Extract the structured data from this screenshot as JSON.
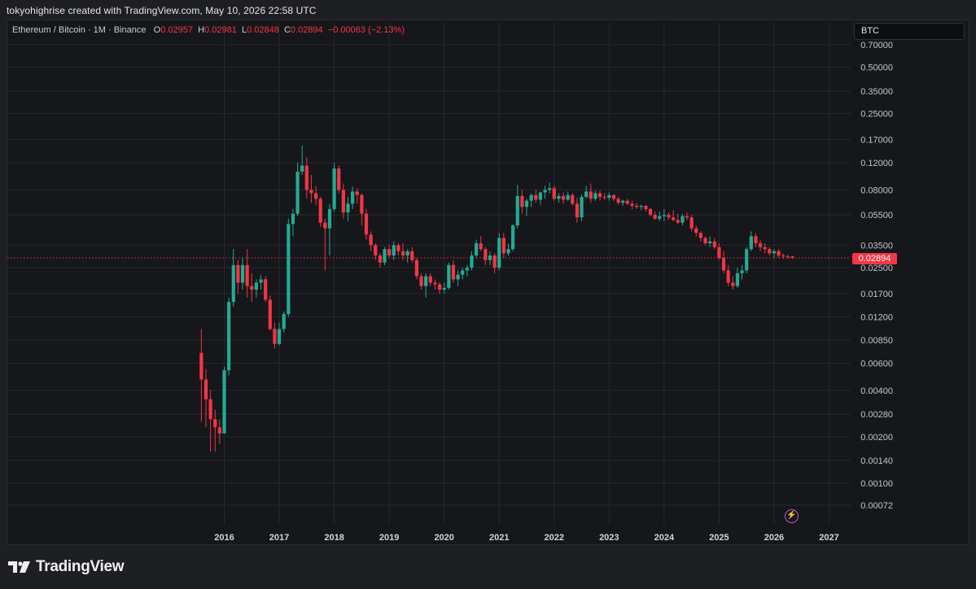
{
  "caption": "tokyohighrise created with TradingView.com, May 10, 2026 22:58 UTC",
  "legend": {
    "symbol": "Ethereum / Bitcoin · 1M · Binance",
    "open_label": "O",
    "open": "0.02957",
    "high_label": "H",
    "high": "0.02981",
    "low_label": "L",
    "low": "0.02848",
    "close_label": "C",
    "close": "0.02894",
    "change": "−0.00063 (−2.13%)"
  },
  "ticker_box": "BTC",
  "last_price_label": "0.02894",
  "brand": "TradingView",
  "colors": {
    "up": "#22ab94",
    "down": "#f23645",
    "background": "#16171b",
    "grid": "#26282e",
    "price_line": "#f23645"
  },
  "chart_data": {
    "type": "candlestick",
    "scale": "log",
    "y_ticks": [
      "0.70000",
      "0.50000",
      "0.35000",
      "0.25000",
      "0.17000",
      "0.12000",
      "0.08000",
      "0.05500",
      "0.03500",
      "0.02500",
      "0.01700",
      "0.01200",
      "0.00850",
      "0.00600",
      "0.00400",
      "0.00280",
      "0.00200",
      "0.00140",
      "0.00100",
      "0.00072"
    ],
    "x_ticks": [
      "2016",
      "2017",
      "2018",
      "2019",
      "2020",
      "2021",
      "2022",
      "2023",
      "2024",
      "2025",
      "2026",
      "2027"
    ],
    "grid": true,
    "last_price": 0.02894,
    "candles": [
      {
        "t": "2015-08",
        "o": 0.007,
        "h": 0.01,
        "l": 0.0025,
        "c": 0.0047
      },
      {
        "t": "2015-09",
        "o": 0.0047,
        "h": 0.0055,
        "l": 0.0023,
        "c": 0.0035
      },
      {
        "t": "2015-10",
        "o": 0.0035,
        "h": 0.004,
        "l": 0.0016,
        "c": 0.0026
      },
      {
        "t": "2015-11",
        "o": 0.0026,
        "h": 0.003,
        "l": 0.0016,
        "c": 0.0023
      },
      {
        "t": "2015-12",
        "o": 0.0023,
        "h": 0.0026,
        "l": 0.0018,
        "c": 0.0021
      },
      {
        "t": "2016-01",
        "o": 0.0021,
        "h": 0.0057,
        "l": 0.0021,
        "c": 0.0054
      },
      {
        "t": "2016-02",
        "o": 0.0054,
        "h": 0.016,
        "l": 0.005,
        "c": 0.015
      },
      {
        "t": "2016-03",
        "o": 0.015,
        "h": 0.033,
        "l": 0.014,
        "c": 0.026
      },
      {
        "t": "2016-04",
        "o": 0.026,
        "h": 0.028,
        "l": 0.017,
        "c": 0.02
      },
      {
        "t": "2016-05",
        "o": 0.02,
        "h": 0.029,
        "l": 0.018,
        "c": 0.026
      },
      {
        "t": "2016-06",
        "o": 0.026,
        "h": 0.033,
        "l": 0.016,
        "c": 0.019
      },
      {
        "t": "2016-07",
        "o": 0.019,
        "h": 0.023,
        "l": 0.015,
        "c": 0.018
      },
      {
        "t": "2016-08",
        "o": 0.018,
        "h": 0.021,
        "l": 0.016,
        "c": 0.02
      },
      {
        "t": "2016-09",
        "o": 0.02,
        "h": 0.0225,
        "l": 0.018,
        "c": 0.021
      },
      {
        "t": "2016-10",
        "o": 0.021,
        "h": 0.022,
        "l": 0.015,
        "c": 0.0155
      },
      {
        "t": "2016-11",
        "o": 0.0155,
        "h": 0.0165,
        "l": 0.0098,
        "c": 0.01
      },
      {
        "t": "2016-12",
        "o": 0.01,
        "h": 0.011,
        "l": 0.0075,
        "c": 0.008
      },
      {
        "t": "2017-01",
        "o": 0.008,
        "h": 0.011,
        "l": 0.0078,
        "c": 0.01
      },
      {
        "t": "2017-02",
        "o": 0.01,
        "h": 0.013,
        "l": 0.0095,
        "c": 0.0125
      },
      {
        "t": "2017-03",
        "o": 0.0125,
        "h": 0.052,
        "l": 0.012,
        "c": 0.048
      },
      {
        "t": "2017-04",
        "o": 0.048,
        "h": 0.06,
        "l": 0.04,
        "c": 0.056
      },
      {
        "t": "2017-05",
        "o": 0.056,
        "h": 0.12,
        "l": 0.054,
        "c": 0.105
      },
      {
        "t": "2017-06",
        "o": 0.105,
        "h": 0.155,
        "l": 0.1,
        "c": 0.115
      },
      {
        "t": "2017-07",
        "o": 0.115,
        "h": 0.13,
        "l": 0.07,
        "c": 0.08
      },
      {
        "t": "2017-08",
        "o": 0.08,
        "h": 0.1,
        "l": 0.066,
        "c": 0.076
      },
      {
        "t": "2017-09",
        "o": 0.076,
        "h": 0.085,
        "l": 0.064,
        "c": 0.07
      },
      {
        "t": "2017-10",
        "o": 0.07,
        "h": 0.072,
        "l": 0.046,
        "c": 0.049
      },
      {
        "t": "2017-11",
        "o": 0.049,
        "h": 0.052,
        "l": 0.024,
        "c": 0.045
      },
      {
        "t": "2017-12",
        "o": 0.045,
        "h": 0.065,
        "l": 0.03,
        "c": 0.06
      },
      {
        "t": "2018-01",
        "o": 0.06,
        "h": 0.12,
        "l": 0.058,
        "c": 0.11
      },
      {
        "t": "2018-02",
        "o": 0.11,
        "h": 0.115,
        "l": 0.076,
        "c": 0.08
      },
      {
        "t": "2018-03",
        "o": 0.08,
        "h": 0.088,
        "l": 0.052,
        "c": 0.057
      },
      {
        "t": "2018-04",
        "o": 0.057,
        "h": 0.072,
        "l": 0.05,
        "c": 0.065
      },
      {
        "t": "2018-05",
        "o": 0.065,
        "h": 0.084,
        "l": 0.06,
        "c": 0.078
      },
      {
        "t": "2018-06",
        "o": 0.078,
        "h": 0.082,
        "l": 0.065,
        "c": 0.074
      },
      {
        "t": "2018-07",
        "o": 0.074,
        "h": 0.076,
        "l": 0.047,
        "c": 0.056
      },
      {
        "t": "2018-08",
        "o": 0.056,
        "h": 0.06,
        "l": 0.038,
        "c": 0.041
      },
      {
        "t": "2018-09",
        "o": 0.041,
        "h": 0.043,
        "l": 0.032,
        "c": 0.035
      },
      {
        "t": "2018-10",
        "o": 0.035,
        "h": 0.036,
        "l": 0.028,
        "c": 0.03
      },
      {
        "t": "2018-11",
        "o": 0.03,
        "h": 0.031,
        "l": 0.025,
        "c": 0.027
      },
      {
        "t": "2018-12",
        "o": 0.027,
        "h": 0.034,
        "l": 0.026,
        "c": 0.033
      },
      {
        "t": "2019-01",
        "o": 0.033,
        "h": 0.035,
        "l": 0.029,
        "c": 0.03
      },
      {
        "t": "2019-02",
        "o": 0.03,
        "h": 0.037,
        "l": 0.028,
        "c": 0.035
      },
      {
        "t": "2019-03",
        "o": 0.035,
        "h": 0.036,
        "l": 0.03,
        "c": 0.032
      },
      {
        "t": "2019-04",
        "o": 0.032,
        "h": 0.036,
        "l": 0.028,
        "c": 0.03
      },
      {
        "t": "2019-05",
        "o": 0.03,
        "h": 0.033,
        "l": 0.027,
        "c": 0.032
      },
      {
        "t": "2019-06",
        "o": 0.032,
        "h": 0.034,
        "l": 0.027,
        "c": 0.028
      },
      {
        "t": "2019-07",
        "o": 0.028,
        "h": 0.029,
        "l": 0.021,
        "c": 0.022
      },
      {
        "t": "2019-08",
        "o": 0.022,
        "h": 0.023,
        "l": 0.018,
        "c": 0.019
      },
      {
        "t": "2019-09",
        "o": 0.019,
        "h": 0.023,
        "l": 0.016,
        "c": 0.022
      },
      {
        "t": "2019-10",
        "o": 0.022,
        "h": 0.023,
        "l": 0.019,
        "c": 0.02
      },
      {
        "t": "2019-11",
        "o": 0.02,
        "h": 0.021,
        "l": 0.018,
        "c": 0.0195
      },
      {
        "t": "2019-12",
        "o": 0.0195,
        "h": 0.02,
        "l": 0.017,
        "c": 0.018
      },
      {
        "t": "2020-01",
        "o": 0.018,
        "h": 0.02,
        "l": 0.017,
        "c": 0.0185
      },
      {
        "t": "2020-02",
        "o": 0.0185,
        "h": 0.027,
        "l": 0.018,
        "c": 0.026
      },
      {
        "t": "2020-03",
        "o": 0.026,
        "h": 0.028,
        "l": 0.02,
        "c": 0.021
      },
      {
        "t": "2020-04",
        "o": 0.021,
        "h": 0.024,
        "l": 0.019,
        "c": 0.0225
      },
      {
        "t": "2020-05",
        "o": 0.0225,
        "h": 0.025,
        "l": 0.021,
        "c": 0.024
      },
      {
        "t": "2020-06",
        "o": 0.024,
        "h": 0.026,
        "l": 0.022,
        "c": 0.025
      },
      {
        "t": "2020-07",
        "o": 0.025,
        "h": 0.032,
        "l": 0.024,
        "c": 0.03
      },
      {
        "t": "2020-08",
        "o": 0.03,
        "h": 0.038,
        "l": 0.029,
        "c": 0.036
      },
      {
        "t": "2020-09",
        "o": 0.036,
        "h": 0.04,
        "l": 0.032,
        "c": 0.033
      },
      {
        "t": "2020-10",
        "o": 0.033,
        "h": 0.034,
        "l": 0.026,
        "c": 0.028
      },
      {
        "t": "2020-11",
        "o": 0.028,
        "h": 0.032,
        "l": 0.026,
        "c": 0.03
      },
      {
        "t": "2020-12",
        "o": 0.03,
        "h": 0.031,
        "l": 0.023,
        "c": 0.025
      },
      {
        "t": "2021-01",
        "o": 0.025,
        "h": 0.042,
        "l": 0.024,
        "c": 0.039
      },
      {
        "t": "2021-02",
        "o": 0.039,
        "h": 0.042,
        "l": 0.029,
        "c": 0.031
      },
      {
        "t": "2021-03",
        "o": 0.031,
        "h": 0.036,
        "l": 0.03,
        "c": 0.033
      },
      {
        "t": "2021-04",
        "o": 0.033,
        "h": 0.048,
        "l": 0.032,
        "c": 0.047
      },
      {
        "t": "2021-05",
        "o": 0.047,
        "h": 0.086,
        "l": 0.045,
        "c": 0.073
      },
      {
        "t": "2021-06",
        "o": 0.073,
        "h": 0.08,
        "l": 0.056,
        "c": 0.062
      },
      {
        "t": "2021-07",
        "o": 0.062,
        "h": 0.07,
        "l": 0.054,
        "c": 0.068
      },
      {
        "t": "2021-08",
        "o": 0.068,
        "h": 0.076,
        "l": 0.062,
        "c": 0.074
      },
      {
        "t": "2021-09",
        "o": 0.074,
        "h": 0.08,
        "l": 0.066,
        "c": 0.069
      },
      {
        "t": "2021-10",
        "o": 0.069,
        "h": 0.078,
        "l": 0.064,
        "c": 0.077
      },
      {
        "t": "2021-11",
        "o": 0.077,
        "h": 0.085,
        "l": 0.07,
        "c": 0.08
      },
      {
        "t": "2021-12",
        "o": 0.08,
        "h": 0.089,
        "l": 0.076,
        "c": 0.082
      },
      {
        "t": "2022-01",
        "o": 0.082,
        "h": 0.085,
        "l": 0.068,
        "c": 0.07
      },
      {
        "t": "2022-02",
        "o": 0.07,
        "h": 0.076,
        "l": 0.066,
        "c": 0.073
      },
      {
        "t": "2022-03",
        "o": 0.073,
        "h": 0.077,
        "l": 0.065,
        "c": 0.069
      },
      {
        "t": "2022-04",
        "o": 0.069,
        "h": 0.078,
        "l": 0.068,
        "c": 0.074
      },
      {
        "t": "2022-05",
        "o": 0.074,
        "h": 0.076,
        "l": 0.063,
        "c": 0.065
      },
      {
        "t": "2022-06",
        "o": 0.065,
        "h": 0.071,
        "l": 0.049,
        "c": 0.053
      },
      {
        "t": "2022-07",
        "o": 0.053,
        "h": 0.075,
        "l": 0.05,
        "c": 0.072
      },
      {
        "t": "2022-08",
        "o": 0.072,
        "h": 0.085,
        "l": 0.07,
        "c": 0.078
      },
      {
        "t": "2022-09",
        "o": 0.078,
        "h": 0.088,
        "l": 0.066,
        "c": 0.07
      },
      {
        "t": "2022-10",
        "o": 0.07,
        "h": 0.079,
        "l": 0.068,
        "c": 0.076
      },
      {
        "t": "2022-11",
        "o": 0.076,
        "h": 0.079,
        "l": 0.068,
        "c": 0.072
      },
      {
        "t": "2022-12",
        "o": 0.072,
        "h": 0.076,
        "l": 0.069,
        "c": 0.071
      },
      {
        "t": "2023-01",
        "o": 0.071,
        "h": 0.077,
        "l": 0.068,
        "c": 0.074
      },
      {
        "t": "2023-02",
        "o": 0.074,
        "h": 0.075,
        "l": 0.068,
        "c": 0.07
      },
      {
        "t": "2023-03",
        "o": 0.07,
        "h": 0.072,
        "l": 0.064,
        "c": 0.066
      },
      {
        "t": "2023-04",
        "o": 0.066,
        "h": 0.069,
        "l": 0.063,
        "c": 0.068
      },
      {
        "t": "2023-05",
        "o": 0.068,
        "h": 0.07,
        "l": 0.064,
        "c": 0.065
      },
      {
        "t": "2023-06",
        "o": 0.065,
        "h": 0.068,
        "l": 0.06,
        "c": 0.063
      },
      {
        "t": "2023-07",
        "o": 0.063,
        "h": 0.066,
        "l": 0.06,
        "c": 0.062
      },
      {
        "t": "2023-08",
        "o": 0.062,
        "h": 0.064,
        "l": 0.059,
        "c": 0.063
      },
      {
        "t": "2023-09",
        "o": 0.063,
        "h": 0.064,
        "l": 0.058,
        "c": 0.06
      },
      {
        "t": "2023-10",
        "o": 0.06,
        "h": 0.061,
        "l": 0.054,
        "c": 0.055
      },
      {
        "t": "2023-11",
        "o": 0.055,
        "h": 0.058,
        "l": 0.051,
        "c": 0.052
      },
      {
        "t": "2023-12",
        "o": 0.052,
        "h": 0.058,
        "l": 0.05,
        "c": 0.054
      },
      {
        "t": "2024-01",
        "o": 0.054,
        "h": 0.06,
        "l": 0.05,
        "c": 0.055
      },
      {
        "t": "2024-02",
        "o": 0.055,
        "h": 0.057,
        "l": 0.051,
        "c": 0.053
      },
      {
        "t": "2024-03",
        "o": 0.053,
        "h": 0.059,
        "l": 0.05,
        "c": 0.051
      },
      {
        "t": "2024-04",
        "o": 0.051,
        "h": 0.056,
        "l": 0.048,
        "c": 0.049
      },
      {
        "t": "2024-05",
        "o": 0.049,
        "h": 0.056,
        "l": 0.047,
        "c": 0.054
      },
      {
        "t": "2024-06",
        "o": 0.054,
        "h": 0.057,
        "l": 0.051,
        "c": 0.053
      },
      {
        "t": "2024-07",
        "o": 0.053,
        "h": 0.055,
        "l": 0.043,
        "c": 0.045
      },
      {
        "t": "2024-08",
        "o": 0.045,
        "h": 0.047,
        "l": 0.04,
        "c": 0.042
      },
      {
        "t": "2024-09",
        "o": 0.042,
        "h": 0.043,
        "l": 0.037,
        "c": 0.039
      },
      {
        "t": "2024-10",
        "o": 0.039,
        "h": 0.04,
        "l": 0.035,
        "c": 0.036
      },
      {
        "t": "2024-11",
        "o": 0.036,
        "h": 0.04,
        "l": 0.034,
        "c": 0.037
      },
      {
        "t": "2024-12",
        "o": 0.037,
        "h": 0.039,
        "l": 0.033,
        "c": 0.034
      },
      {
        "t": "2025-01",
        "o": 0.034,
        "h": 0.036,
        "l": 0.028,
        "c": 0.029
      },
      {
        "t": "2025-02",
        "o": 0.029,
        "h": 0.032,
        "l": 0.023,
        "c": 0.024
      },
      {
        "t": "2025-03",
        "o": 0.024,
        "h": 0.026,
        "l": 0.019,
        "c": 0.02
      },
      {
        "t": "2025-04",
        "o": 0.02,
        "h": 0.022,
        "l": 0.018,
        "c": 0.019
      },
      {
        "t": "2025-05",
        "o": 0.019,
        "h": 0.025,
        "l": 0.0185,
        "c": 0.023
      },
      {
        "t": "2025-06",
        "o": 0.023,
        "h": 0.026,
        "l": 0.021,
        "c": 0.024
      },
      {
        "t": "2025-07",
        "o": 0.024,
        "h": 0.034,
        "l": 0.023,
        "c": 0.033
      },
      {
        "t": "2025-08",
        "o": 0.033,
        "h": 0.043,
        "l": 0.032,
        "c": 0.04
      },
      {
        "t": "2025-09",
        "o": 0.04,
        "h": 0.042,
        "l": 0.034,
        "c": 0.036
      },
      {
        "t": "2025-10",
        "o": 0.036,
        "h": 0.038,
        "l": 0.032,
        "c": 0.034
      },
      {
        "t": "2025-11",
        "o": 0.034,
        "h": 0.036,
        "l": 0.031,
        "c": 0.033
      },
      {
        "t": "2025-12",
        "o": 0.033,
        "h": 0.034,
        "l": 0.03,
        "c": 0.031
      },
      {
        "t": "2026-01",
        "o": 0.031,
        "h": 0.033,
        "l": 0.029,
        "c": 0.032
      },
      {
        "t": "2026-02",
        "o": 0.032,
        "h": 0.033,
        "l": 0.029,
        "c": 0.03
      },
      {
        "t": "2026-03",
        "o": 0.03,
        "h": 0.031,
        "l": 0.0285,
        "c": 0.0296
      },
      {
        "t": "2026-04",
        "o": 0.0296,
        "h": 0.0305,
        "l": 0.0287,
        "c": 0.02957
      },
      {
        "t": "2026-05",
        "o": 0.02957,
        "h": 0.02981,
        "l": 0.02848,
        "c": 0.02894
      }
    ]
  }
}
